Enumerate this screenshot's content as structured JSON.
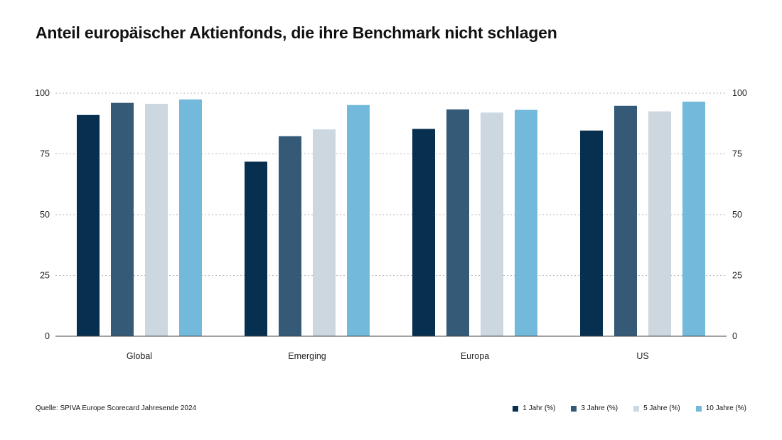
{
  "chart_data": {
    "type": "bar",
    "title": "Anteil europäischer Aktienfonds, die ihre Benchmark nicht schlagen",
    "categories": [
      "Global",
      "Emerging",
      "Europa",
      "US"
    ],
    "series": [
      {
        "name": "1 Jahr (%)",
        "color": "#062f50",
        "values": [
          91.0,
          71.8,
          85.3,
          84.6
        ]
      },
      {
        "name": "3 Jahre (%)",
        "color": "#355a77",
        "values": [
          96.0,
          82.3,
          93.3,
          94.8
        ]
      },
      {
        "name": "5 Jahre (%)",
        "color": "#cdd7e0",
        "values": [
          95.6,
          85.1,
          92.0,
          92.5
        ]
      },
      {
        "name": "10 Jahre (%)",
        "color": "#72b9db",
        "values": [
          97.4,
          95.1,
          93.1,
          96.5
        ]
      }
    ],
    "ylim": [
      0,
      100
    ],
    "yticks": [
      "0",
      "25",
      "50",
      "75",
      "100"
    ],
    "y_axis_sides": "left-and-right",
    "grid": "horizontal-dotted",
    "legend_position": "bottom-right",
    "xlabel": "",
    "ylabel": ""
  },
  "source": "Quelle: SPIVA Europe Scorecard Jahresende 2024"
}
